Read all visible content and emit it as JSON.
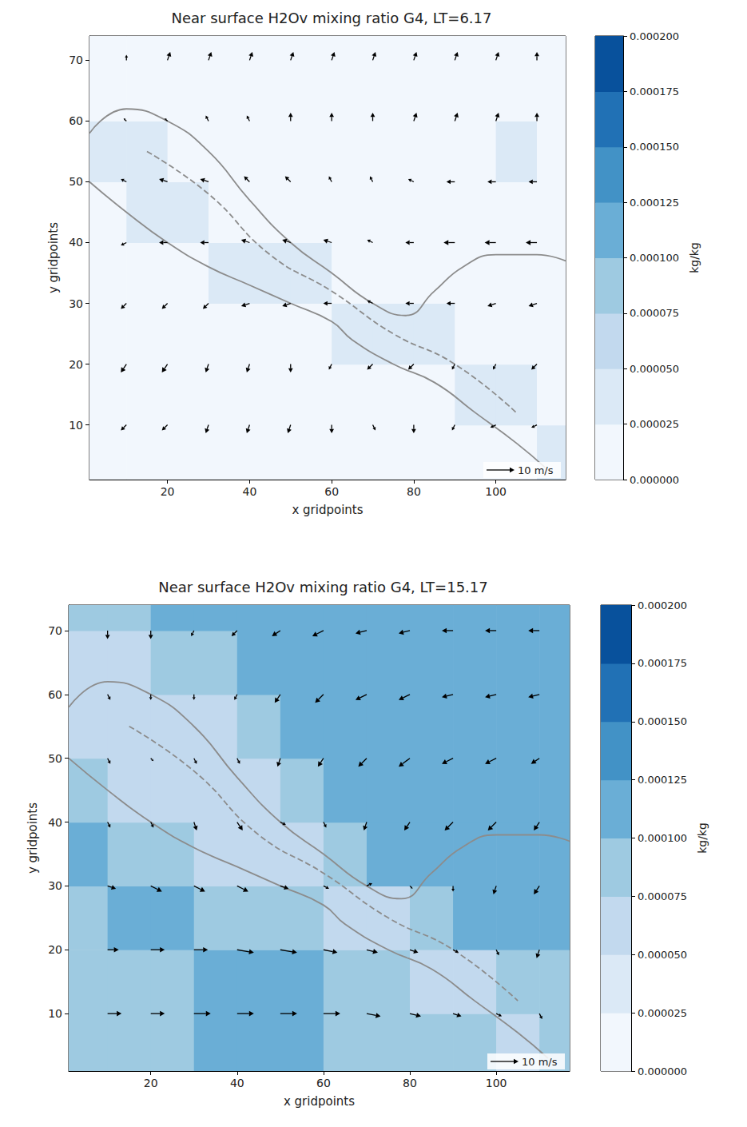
{
  "chart_data": [
    {
      "type": "heatmap",
      "title": "Near surface H2Ov mixing ratio G4, LT=6.17",
      "x_label": "x gridpoints",
      "y_label": "y gridpoints",
      "xlim": [
        1,
        117
      ],
      "ylim": [
        1,
        74
      ],
      "xticks": [
        20,
        40,
        60,
        80,
        100
      ],
      "yticks": [
        10,
        20,
        30,
        40,
        50,
        60,
        70
      ],
      "grid": false,
      "field": {
        "x": [
          5,
          15,
          25,
          35,
          45,
          55,
          65,
          75,
          85,
          95,
          105,
          115
        ],
        "y": [
          5,
          15,
          25,
          35,
          45,
          55,
          65,
          75
        ],
        "values": [
          [
            1.5e-05,
            1.5e-05,
            1.5e-05,
            1.5e-05,
            1.5e-05,
            1.5e-05,
            1.5e-05,
            1.5e-05,
            1.5e-05,
            1.5e-05,
            1.5e-05,
            3e-05
          ],
          [
            2e-05,
            2e-05,
            2e-05,
            2e-05,
            2e-05,
            2e-05,
            2e-05,
            2e-05,
            2e-05,
            3e-05,
            3e-05,
            2e-05
          ],
          [
            2e-05,
            2e-05,
            2e-05,
            2e-05,
            2e-05,
            2e-05,
            3e-05,
            3.5e-05,
            3e-05,
            2e-05,
            2e-05,
            2e-05
          ],
          [
            2e-05,
            2e-05,
            2e-05,
            3e-05,
            3.5e-05,
            3e-05,
            2e-05,
            2e-05,
            2e-05,
            2e-05,
            2e-05,
            2e-05
          ],
          [
            2e-05,
            3e-05,
            3e-05,
            2e-05,
            2e-05,
            2e-05,
            2e-05,
            2e-05,
            2e-05,
            2e-05,
            2e-05,
            2e-05
          ],
          [
            3e-05,
            2.8e-05,
            2e-05,
            2e-05,
            2e-05,
            2e-05,
            2e-05,
            2e-05,
            2e-05,
            2e-05,
            2.6e-05,
            2e-05
          ],
          [
            2e-05,
            2e-05,
            2e-05,
            2e-05,
            2e-05,
            2e-05,
            2e-05,
            2e-05,
            2e-05,
            2e-05,
            2e-05,
            2e-05
          ],
          [
            1.5e-05,
            1.5e-05,
            1.5e-05,
            1.5e-05,
            1.5e-05,
            1.5e-05,
            1.5e-05,
            1.5e-05,
            1.5e-05,
            1.5e-05,
            1.5e-05,
            1.5e-05
          ]
        ]
      },
      "colorbar": {
        "label": "kg/kg",
        "range": [
          0,
          0.0002
        ],
        "ticks": [
          {
            "value": 0,
            "label": "0.000000"
          },
          2.5e-05,
          {
            "value": 5e-05,
            "label": "0.000050"
          },
          7.5e-05,
          {
            "value": 0.0001,
            "label": "0.000100"
          },
          0.000125,
          {
            "value": 0.00015,
            "label": "0.000150"
          },
          0.000175,
          {
            "value": 0.0002,
            "label": "0.000200"
          }
        ],
        "colors": [
          "#f2f7fd",
          "#dbe9f6",
          "#c2d9ee",
          "#9ecae1",
          "#6aaed6",
          "#4292c6",
          "#2171b5",
          "#08519c"
        ]
      },
      "vectors": {
        "color": "#000000",
        "x": [
          10,
          20,
          30,
          40,
          50,
          60,
          70,
          80,
          90,
          100,
          110
        ],
        "y": [
          10,
          20,
          30,
          40,
          50,
          60,
          70
        ],
        "u": [
          [
            -2,
            -2,
            -1,
            -1,
            -1,
            0,
            1,
            0,
            -1,
            -2,
            -2
          ],
          [
            -2,
            -2,
            -1,
            -1,
            0,
            -1,
            -2,
            -2,
            -1,
            -1,
            -2
          ],
          [
            -2,
            -2,
            -2,
            -3,
            -3,
            -3,
            -2,
            -3,
            -3,
            -3,
            -3
          ],
          [
            -2,
            -3,
            -3,
            -3,
            -3,
            -3,
            -2,
            -3,
            -4,
            -4,
            -4
          ],
          [
            -2,
            -3,
            -3,
            -2,
            -2,
            -1,
            -1,
            -2,
            -3,
            -3,
            -3
          ],
          [
            -1,
            -1,
            -1,
            -1,
            0,
            0,
            0,
            1,
            1,
            1,
            0
          ],
          [
            0,
            1,
            1,
            1,
            1,
            1,
            1,
            1,
            1,
            1,
            0
          ]
        ],
        "v": [
          [
            -2,
            -2,
            -3,
            -3,
            -3,
            -3,
            -2,
            -3,
            -2,
            -1,
            -1
          ],
          [
            -3,
            -3,
            -3,
            -3,
            -3,
            -2,
            -2,
            -2,
            -2,
            -2,
            -2
          ],
          [
            -2,
            -2,
            -2,
            -1,
            -1,
            0,
            1,
            0,
            0,
            -1,
            -1
          ],
          [
            -1,
            0,
            0,
            1,
            1,
            1,
            1,
            0,
            0,
            0,
            0
          ],
          [
            1,
            1,
            1,
            2,
            2,
            2,
            2,
            1,
            0,
            0,
            0
          ],
          [
            1,
            1,
            2,
            2,
            3,
            3,
            3,
            3,
            3,
            3,
            3
          ],
          [
            2,
            3,
            3,
            3,
            3,
            3,
            3,
            3,
            3,
            3,
            3
          ]
        ]
      },
      "quiver_key": {
        "value": 10,
        "label": "10 m/s"
      },
      "contours": [
        {
          "color": "#8c8c8c",
          "line_style": "solid",
          "points": [
            [
              1,
              58
            ],
            [
              10,
              62
            ],
            [
              20,
              60
            ],
            [
              30,
              55
            ],
            [
              40,
              47
            ],
            [
              50,
              40
            ],
            [
              60,
              35
            ],
            [
              70,
              30
            ],
            [
              78,
              28
            ],
            [
              85,
              32
            ],
            [
              92,
              36
            ],
            [
              100,
              38
            ],
            [
              110,
              38
            ],
            [
              117,
              37
            ]
          ]
        },
        {
          "color": "#8c8c8c",
          "line_style": "solid",
          "points": [
            [
              1,
              50
            ],
            [
              10,
              45
            ],
            [
              20,
              40
            ],
            [
              30,
              36
            ],
            [
              40,
              33
            ],
            [
              50,
              30
            ],
            [
              60,
              27
            ],
            [
              65,
              24
            ],
            [
              75,
              20
            ],
            [
              85,
              17
            ],
            [
              95,
              12
            ],
            [
              105,
              7
            ],
            [
              112,
              3
            ]
          ]
        },
        {
          "color": "#8c8c8c",
          "line_style": "dashed",
          "points": [
            [
              15,
              55
            ],
            [
              30,
              48
            ],
            [
              45,
              38
            ],
            [
              60,
              32
            ],
            [
              75,
              25
            ],
            [
              90,
              20
            ],
            [
              105,
              12
            ]
          ]
        }
      ]
    },
    {
      "type": "heatmap",
      "title": "Near surface H2Ov mixing ratio G4, LT=15.17",
      "x_label": "x gridpoints",
      "y_label": "y gridpoints",
      "xlim": [
        1,
        117
      ],
      "ylim": [
        1,
        74
      ],
      "xticks": [
        20,
        40,
        60,
        80,
        100
      ],
      "yticks": [
        10,
        20,
        30,
        40,
        50,
        60,
        70
      ],
      "grid": false,
      "field": {
        "x": [
          5,
          15,
          25,
          35,
          45,
          55,
          65,
          75,
          85,
          95,
          105,
          115
        ],
        "y": [
          5,
          15,
          25,
          35,
          45,
          55,
          65,
          75
        ],
        "values": [
          [
            9e-05,
            9e-05,
            9e-05,
            0.00011,
            0.00011,
            0.00011,
            9e-05,
            9e-05,
            9e-05,
            8e-05,
            6e-05,
            8e-05
          ],
          [
            9e-05,
            9e-05,
            9e-05,
            0.00011,
            0.00011,
            0.00011,
            9e-05,
            8e-05,
            6e-05,
            7e-05,
            9e-05,
            9e-05
          ],
          [
            9e-05,
            0.00011,
            0.00011,
            9e-05,
            9e-05,
            8e-05,
            6e-05,
            7e-05,
            9e-05,
            0.00011,
            0.00011,
            0.00011
          ],
          [
            0.00011,
            9e-05,
            8e-05,
            6e-05,
            6e-05,
            7e-05,
            9e-05,
            0.00011,
            0.00011,
            0.00011,
            0.00011,
            0.00011
          ],
          [
            8e-05,
            6e-05,
            6e-05,
            6e-05,
            7e-05,
            9e-05,
            0.00011,
            0.00011,
            0.00011,
            0.00011,
            0.00011,
            0.00011
          ],
          [
            6e-05,
            6e-05,
            6e-05,
            7e-05,
            9e-05,
            0.00011,
            0.00011,
            0.00011,
            0.00011,
            0.00011,
            0.00011,
            0.00011
          ],
          [
            7e-05,
            6e-05,
            8e-05,
            9e-05,
            0.00011,
            0.00011,
            0.00011,
            0.00011,
            0.00011,
            0.00011,
            0.00011,
            0.00011
          ],
          [
            9e-05,
            9e-05,
            0.00011,
            0.00011,
            0.00011,
            0.00011,
            0.00011,
            0.00011,
            0.00011,
            0.00011,
            0.00011,
            0.00011
          ]
        ]
      },
      "colorbar": {
        "label": "kg/kg",
        "range": [
          0,
          0.0002
        ],
        "ticks": [
          {
            "value": 0,
            "label": "0.000000"
          },
          2.5e-05,
          {
            "value": 5e-05,
            "label": "0.000050"
          },
          7.5e-05,
          {
            "value": 0.0001,
            "label": "0.000100"
          },
          0.000125,
          {
            "value": 0.00015,
            "label": "0.000150"
          },
          0.000175,
          {
            "value": 0.0002,
            "label": "0.000200"
          }
        ],
        "colors": [
          "#f2f7fd",
          "#dbe9f6",
          "#c2d9ee",
          "#9ecae1",
          "#6aaed6",
          "#4292c6",
          "#2171b5",
          "#08519c"
        ]
      },
      "vectors": {
        "color": "#000000",
        "x": [
          10,
          20,
          30,
          40,
          50,
          60,
          70,
          80,
          90,
          100,
          110
        ],
        "y": [
          10,
          20,
          30,
          40,
          50,
          60,
          70
        ],
        "u": [
          [
            5,
            5,
            6,
            6,
            6,
            6,
            5,
            4,
            3,
            2,
            1
          ],
          [
            4,
            5,
            5,
            6,
            6,
            5,
            4,
            3,
            2,
            1,
            -1
          ],
          [
            3,
            4,
            4,
            4,
            3,
            2,
            2,
            1,
            0,
            -1,
            -2
          ],
          [
            1,
            1,
            1,
            2,
            2,
            1,
            -1,
            -2,
            -3,
            -3,
            -2
          ],
          [
            1,
            1,
            1,
            1,
            -1,
            -2,
            -3,
            -4,
            -4,
            -4,
            -3
          ],
          [
            1,
            0,
            0,
            -1,
            -2,
            -3,
            -4,
            -4,
            -4,
            -4,
            -4
          ],
          [
            0,
            0,
            -1,
            -2,
            -3,
            -4,
            -4,
            -4,
            -4,
            -4,
            -4
          ]
        ],
        "v": [
          [
            0,
            0,
            0,
            0,
            0,
            0,
            -1,
            -1,
            -1,
            -1,
            -2
          ],
          [
            0,
            0,
            0,
            -1,
            -1,
            -1,
            -1,
            -1,
            -1,
            -2,
            -3
          ],
          [
            -1,
            -2,
            -2,
            -2,
            -1,
            -1,
            1,
            -1,
            -2,
            -3,
            -3
          ],
          [
            -2,
            -2,
            -3,
            -3,
            -1,
            -2,
            -3,
            -3,
            -3,
            -3,
            -3
          ],
          [
            -2,
            -1,
            -2,
            -2,
            -3,
            -3,
            -3,
            -3,
            -2,
            -2,
            -2
          ],
          [
            -2,
            -2,
            -2,
            -2,
            -3,
            -3,
            -2,
            -2,
            -1,
            -1,
            -1
          ],
          [
            -3,
            -3,
            -2,
            -2,
            -2,
            -2,
            -1,
            -1,
            0,
            0,
            0
          ]
        ]
      },
      "quiver_key": {
        "value": 10,
        "label": "10 m/s"
      },
      "contours": [
        {
          "color": "#8c8c8c",
          "line_style": "solid",
          "points": [
            [
              1,
              58
            ],
            [
              10,
              62
            ],
            [
              20,
              60
            ],
            [
              30,
              55
            ],
            [
              40,
              47
            ],
            [
              50,
              40
            ],
            [
              60,
              35
            ],
            [
              70,
              30
            ],
            [
              78,
              28
            ],
            [
              85,
              32
            ],
            [
              92,
              36
            ],
            [
              100,
              38
            ],
            [
              110,
              38
            ],
            [
              117,
              37
            ]
          ]
        },
        {
          "color": "#8c8c8c",
          "line_style": "solid",
          "points": [
            [
              1,
              50
            ],
            [
              10,
              45
            ],
            [
              20,
              40
            ],
            [
              30,
              36
            ],
            [
              40,
              33
            ],
            [
              50,
              30
            ],
            [
              60,
              27
            ],
            [
              65,
              24
            ],
            [
              75,
              20
            ],
            [
              85,
              17
            ],
            [
              95,
              12
            ],
            [
              105,
              7
            ],
            [
              112,
              3
            ]
          ]
        },
        {
          "color": "#8c8c8c",
          "line_style": "dashed",
          "points": [
            [
              15,
              55
            ],
            [
              30,
              48
            ],
            [
              45,
              38
            ],
            [
              60,
              32
            ],
            [
              75,
              25
            ],
            [
              90,
              20
            ],
            [
              105,
              12
            ]
          ]
        }
      ]
    }
  ]
}
